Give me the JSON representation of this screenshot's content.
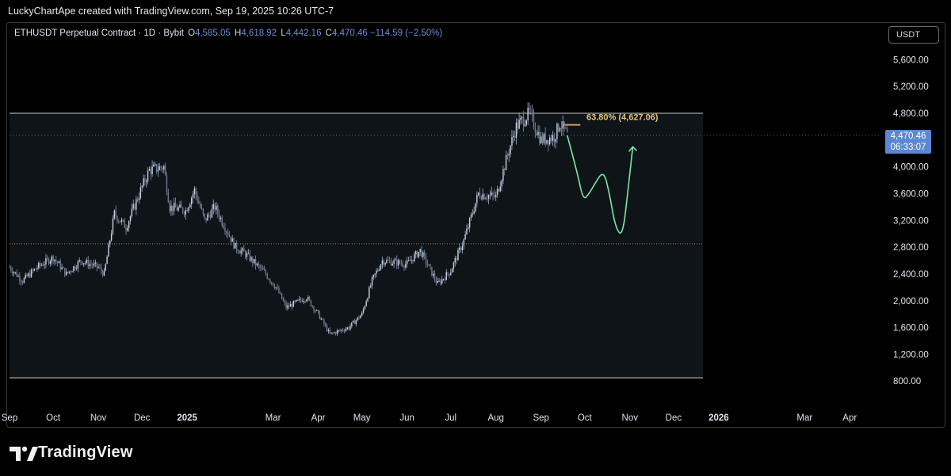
{
  "header": {
    "credit": "LuckyChartApe created with TradingView.com, Sep 19, 2025 10:26 UTC-7"
  },
  "legend": {
    "symbol": "ETHUSDT Perpetual Contract · 1D · Bybit",
    "o_label": "O",
    "o_value": "4,585.05",
    "h_label": "H",
    "h_value": "4,618.92",
    "l_label": "L",
    "l_value": "4,442.16",
    "c_label": "C",
    "c_value": "4,470.46",
    "change": "−114.59 (−2.50%)"
  },
  "currency_button": "USDT",
  "price_tag": {
    "price": "4,470.46",
    "countdown": "06:33:07"
  },
  "fib_label": "63.80% (4,627.06)",
  "brand": {
    "name": "TradingView",
    "logo_icon": "tradingview-logo-icon"
  },
  "colors": {
    "bull": "#a0aec8",
    "bear": "#8690a8",
    "projection": "#7fe6a5",
    "fib": "#c9a45e",
    "accent": "#5b87d3"
  },
  "chart_data": {
    "type": "candlestick",
    "y_axis": {
      "min": 600,
      "max": 6000,
      "ticks": [
        800,
        1200,
        1600,
        2000,
        2400,
        2800,
        3200,
        3600,
        4000,
        4800,
        5200,
        5600
      ],
      "tick_labels": [
        "800.00",
        "1,200.00",
        "1,600.00",
        "2,000.00",
        "2,400.00",
        "2,800.00",
        "3,200.00",
        "3,600.00",
        "4,000.00",
        "4,800.00",
        "5,200.00",
        "5,600.00"
      ]
    },
    "x_axis": {
      "labels": [
        {
          "text": "Sep",
          "date": "2024-09-01"
        },
        {
          "text": "Oct",
          "date": "2024-10-01"
        },
        {
          "text": "Nov",
          "date": "2024-11-01"
        },
        {
          "text": "Dec",
          "date": "2024-12-01"
        },
        {
          "text": "2025",
          "date": "2025-01-01"
        },
        {
          "text": "Mar",
          "date": "2025-03-01"
        },
        {
          "text": "Apr",
          "date": "2025-04-01"
        },
        {
          "text": "May",
          "date": "2025-05-01"
        },
        {
          "text": "Jun",
          "date": "2025-06-01"
        },
        {
          "text": "Jul",
          "date": "2025-07-01"
        },
        {
          "text": "Aug",
          "date": "2025-08-01"
        },
        {
          "text": "Sep",
          "date": "2025-09-01"
        },
        {
          "text": "Oct",
          "date": "2025-10-01"
        },
        {
          "text": "Nov",
          "date": "2025-11-01"
        },
        {
          "text": "Dec",
          "date": "2025-12-01"
        },
        {
          "text": "2026",
          "date": "2026-01-01"
        },
        {
          "text": "Mar",
          "date": "2026-03-01"
        },
        {
          "text": "Apr",
          "date": "2026-04-01"
        }
      ]
    },
    "price_path": [
      [
        "2024-09-01",
        2500
      ],
      [
        "2024-09-10",
        2300
      ],
      [
        "2024-09-20",
        2500
      ],
      [
        "2024-10-01",
        2650
      ],
      [
        "2024-10-10",
        2400
      ],
      [
        "2024-10-20",
        2600
      ],
      [
        "2024-11-01",
        2500
      ],
      [
        "2024-11-05",
        2400
      ],
      [
        "2024-11-12",
        3300
      ],
      [
        "2024-11-20",
        3100
      ],
      [
        "2024-12-01",
        3700
      ],
      [
        "2024-12-06",
        3950
      ],
      [
        "2024-12-16",
        4000
      ],
      [
        "2024-12-20",
        3400
      ],
      [
        "2024-12-31",
        3350
      ],
      [
        "2025-01-06",
        3650
      ],
      [
        "2025-01-13",
        3200
      ],
      [
        "2025-01-20",
        3400
      ],
      [
        "2025-02-03",
        2800
      ],
      [
        "2025-02-10",
        2700
      ],
      [
        "2025-02-24",
        2400
      ],
      [
        "2025-03-03",
        2200
      ],
      [
        "2025-03-10",
        1900
      ],
      [
        "2025-03-24",
        2050
      ],
      [
        "2025-04-01",
        1800
      ],
      [
        "2025-04-09",
        1500
      ],
      [
        "2025-04-22",
        1600
      ],
      [
        "2025-05-01",
        1800
      ],
      [
        "2025-05-08",
        2300
      ],
      [
        "2025-05-15",
        2600
      ],
      [
        "2025-06-01",
        2550
      ],
      [
        "2025-06-10",
        2750
      ],
      [
        "2025-06-22",
        2250
      ],
      [
        "2025-07-01",
        2450
      ],
      [
        "2025-07-10",
        2900
      ],
      [
        "2025-07-20",
        3600
      ],
      [
        "2025-08-01",
        3550
      ],
      [
        "2025-08-10",
        4250
      ],
      [
        "2025-08-15",
        4600
      ],
      [
        "2025-08-24",
        4800
      ],
      [
        "2025-09-01",
        4400
      ],
      [
        "2025-09-10",
        4450
      ],
      [
        "2025-09-14",
        4650
      ],
      [
        "2025-09-19",
        4470
      ]
    ],
    "last_close": 4470.46,
    "levels": [
      {
        "price": 4800,
        "style": "solid"
      },
      {
        "price": 2850,
        "style": "dotted"
      },
      {
        "price": 850,
        "style": "solid"
      },
      {
        "price": 4470.46,
        "style": "dotted-blue"
      }
    ],
    "fib_level": {
      "price": 4627.06,
      "pct": 63.8,
      "from": "2025-09-16",
      "to": "2025-09-28"
    },
    "projection": [
      [
        "2025-09-19",
        4470
      ],
      [
        "2025-09-26",
        3900
      ],
      [
        "2025-09-30",
        3500
      ],
      [
        "2025-10-04",
        3600
      ],
      [
        "2025-10-08",
        3750
      ],
      [
        "2025-10-14",
        3950
      ],
      [
        "2025-10-18",
        3600
      ],
      [
        "2025-10-22",
        3100
      ],
      [
        "2025-10-27",
        2950
      ],
      [
        "2025-10-31",
        3700
      ],
      [
        "2025-11-03",
        4300
      ]
    ]
  }
}
